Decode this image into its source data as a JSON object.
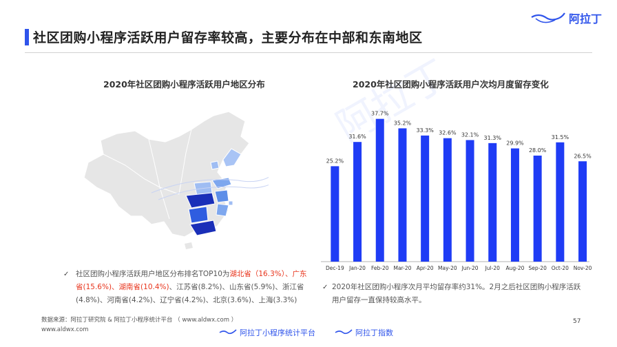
{
  "header": {
    "title": "社区团购小程序活跃用户留存率较高，主要分布在中部和东南地区",
    "logo_text": "阿拉丁"
  },
  "map_section": {
    "title": "2020年社区团购小程序活跃用户地区分布",
    "note_prefix": "社区团购小程序活跃用户地区分布排名TOP10为",
    "note_highlight_1": "湖北省（16.3%）、广东省(15.6%)、湖南省(10.4%)",
    "note_rest": "、江苏省(8.2%)、山东省(5.9%)、浙江省(4.8%)、河南省(4.2%)、辽宁省(4.2%)、北京(3.6%)、上海(3.3%)"
  },
  "chart_data": {
    "type": "bar",
    "title": "2020年社区团购小程序活跃用户次均月度留存变化",
    "categories": [
      "Dec-19",
      "Jan-20",
      "Feb-20",
      "Mar-20",
      "Apr-20",
      "May-20",
      "Jun-20",
      "Jul-20",
      "Aug-20",
      "Sep-20",
      "Oct-20",
      "Nov-20"
    ],
    "values": [
      25.2,
      31.6,
      37.7,
      35.2,
      33.3,
      32.6,
      32.1,
      31.3,
      29.9,
      28.0,
      31.5,
      26.5
    ],
    "value_labels": [
      "25.2%",
      "31.6%",
      "37.7%",
      "35.2%",
      "33.3%",
      "32.6%",
      "32.1%",
      "31.3%",
      "29.9%",
      "28.0%",
      "31.5%",
      "26.5%"
    ],
    "ylim": [
      0,
      40
    ],
    "color": "#1f3cf5",
    "grid": false,
    "legend": "none"
  },
  "bar_section": {
    "note": "2020年社区团购小程序次月平均留存率约31%。2月之后社区团购小程序活跃用户留存一直保持较高水平。"
  },
  "footer": {
    "source": "数据来源：阿拉丁研究院 & 阿拉丁小程序统计平台 （ www.aldwx.com ）",
    "site": "www.aldwx.com",
    "page_number": "57",
    "brand_1": "阿拉丁小程序统计平台",
    "brand_2": "阿拉丁指数"
  },
  "icons": {
    "logo": "lamp-icon",
    "check": "check-icon"
  },
  "colors": {
    "accent": "#2f54eb",
    "bar": "#1f3cf5",
    "highlight": "#e8341c",
    "map_base": "#e6e6e6"
  }
}
